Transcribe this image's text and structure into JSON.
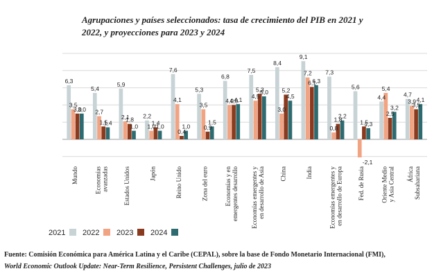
{
  "title": "Agrupaciones y países seleccionados: tasa de crecimiento del PIB en 2021 y 2022, y proyecciones para 2023 y 2024",
  "source": {
    "line1": "Fuente:   Comisión Económica para América Latina y el Caribe (CEPAL), sobre la base de Fondo Monetario Internacional (FMI),",
    "line2": "World Economic Outlook Update: Near-Term Resilience, Persistent Challenges, julio de 2023"
  },
  "colors": {
    "2021": "#c8d3d6",
    "2022": "#f2a382",
    "2023": "#8a3a1e",
    "2024": "#2e6b70"
  },
  "chart_data": {
    "type": "bar",
    "title": "Agrupaciones y países seleccionados: tasa de crecimiento del PIB en 2021 y 2022, y proyecciones para 2023 y 2024",
    "xlabel": "",
    "ylabel": "",
    "ylim": [
      -3,
      11
    ],
    "grid": true,
    "legend": "bottom",
    "categories": [
      "Mundo",
      "Economías avanzadas",
      "Estados Unidos",
      "Japón",
      "Reino Unido",
      "Zona del euro",
      "Economías emergentes y en desarrollo",
      "Economías emergentes y en desarrollo de Asia",
      "China",
      "India",
      "Economías emergentes y en desarrollo de Europa",
      "Fed. de Rusia",
      "Oriente Medio y Asia Central",
      "África Subsahariana"
    ],
    "series": [
      {
        "name": "2021",
        "values": [
          6.3,
          5.4,
          5.9,
          2.2,
          7.6,
          5.3,
          6.8,
          7.5,
          8.4,
          9.1,
          7.3,
          5.6,
          4.4,
          4.7
        ]
      },
      {
        "name": "2022",
        "values": [
          3.5,
          2.7,
          2.1,
          1.0,
          4.1,
          3.5,
          4.0,
          4.5,
          3.0,
          7.2,
          0.8,
          -2.1,
          5.4,
          3.9
        ]
      },
      {
        "name": "2023",
        "values": [
          3.0,
          1.5,
          1.8,
          1.4,
          0.4,
          0.9,
          4.0,
          5.3,
          5.2,
          6.1,
          1.8,
          1.5,
          2.5,
          3.5
        ]
      },
      {
        "name": "2024",
        "values": [
          3.0,
          1.4,
          1.0,
          1.0,
          1.0,
          1.5,
          4.1,
          5.0,
          4.5,
          6.3,
          2.2,
          1.3,
          3.2,
          4.1
        ]
      }
    ]
  }
}
